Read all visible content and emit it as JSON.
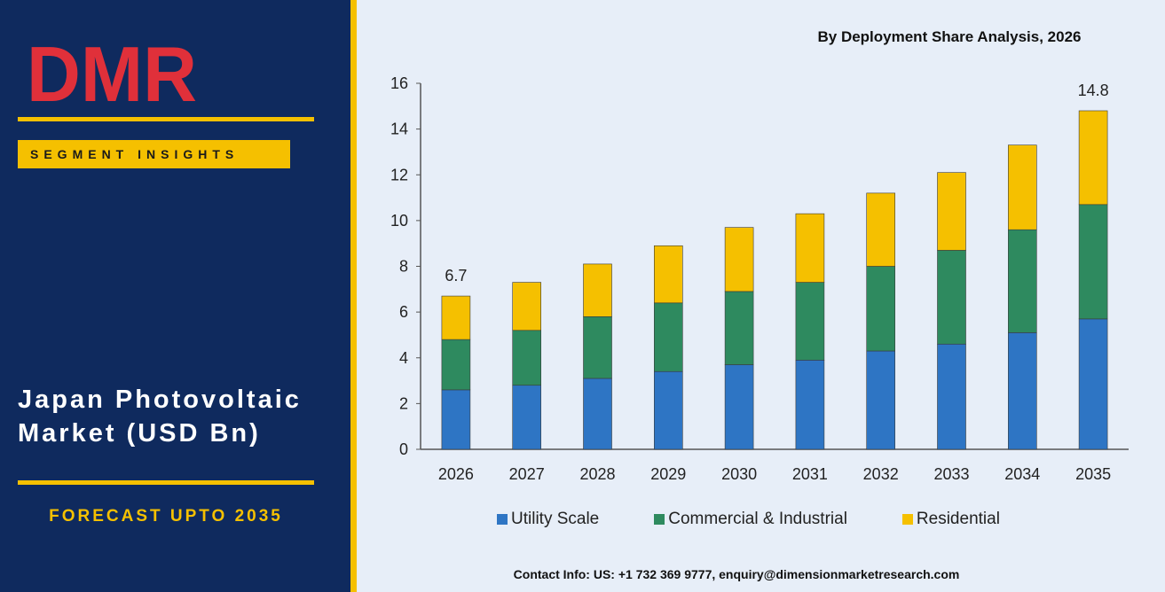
{
  "brand": {
    "logo_text": "DMR",
    "badge": "SEGMENT INSIGHTS"
  },
  "panel": {
    "title_line1": "Japan Photovoltaic",
    "title_line2": "Market (USD Bn)",
    "forecast": "FORECAST UPTO 2035"
  },
  "contact": "Contact Info: US: +1 732 369 9777, enquiry@dimensionmarketresearch.com",
  "colors": {
    "panel": "#0f2a5e",
    "accent": "#f5c000",
    "utility": "#2e75c4",
    "commercial": "#2e8a5f",
    "residential": "#f5c000"
  },
  "chart_data": {
    "type": "bar",
    "stacked": true,
    "title": "By Deployment Share Analysis, 2026",
    "categories": [
      "2026",
      "2027",
      "2028",
      "2029",
      "2030",
      "2031",
      "2032",
      "2033",
      "2034",
      "2035"
    ],
    "series": [
      {
        "name": "Utility Scale",
        "color": "#2e75c4",
        "values": [
          2.6,
          2.8,
          3.1,
          3.4,
          3.7,
          3.9,
          4.3,
          4.6,
          5.1,
          5.7
        ]
      },
      {
        "name": "Commercial & Industrial",
        "color": "#2e8a5f",
        "values": [
          2.2,
          2.4,
          2.7,
          3.0,
          3.2,
          3.4,
          3.7,
          4.1,
          4.5,
          5.0
        ]
      },
      {
        "name": "Residential",
        "color": "#f5c000",
        "values": [
          1.9,
          2.1,
          2.3,
          2.5,
          2.8,
          3.0,
          3.2,
          3.4,
          3.7,
          4.1
        ]
      }
    ],
    "data_labels": [
      {
        "category": "2026",
        "text": "6.7"
      },
      {
        "category": "2035",
        "text": "14.8"
      }
    ],
    "ylim": [
      0,
      16
    ],
    "yticks": [
      0,
      2,
      4,
      6,
      8,
      10,
      12,
      14,
      16
    ],
    "legend": "bottom",
    "grid": false
  }
}
